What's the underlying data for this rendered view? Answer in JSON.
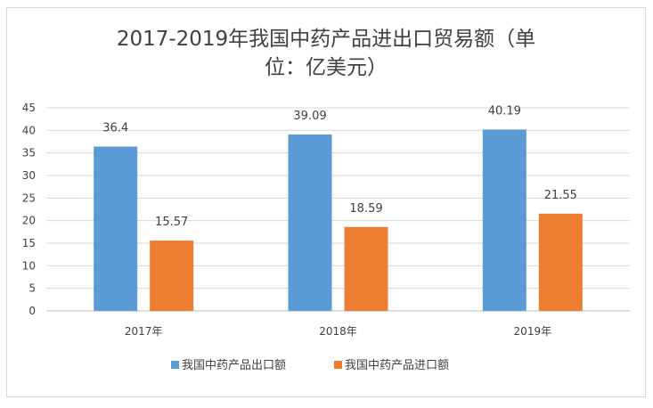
{
  "chart_data": {
    "type": "bar",
    "title_line1": "2017-2019年我国中药产品进出口贸易额（单",
    "title_line2": "位：亿美元）",
    "categories": [
      "2017年",
      "2018年",
      "2019年"
    ],
    "series": [
      {
        "name": "我国中药产品出口额",
        "values": [
          36.4,
          39.09,
          40.19
        ],
        "labels": [
          "36.4",
          "39.09",
          "40.19"
        ],
        "color": "#5b9bd5"
      },
      {
        "name": "我国中药产品进口额",
        "values": [
          15.57,
          18.59,
          21.55
        ],
        "labels": [
          "15.57",
          "18.59",
          "21.55"
        ],
        "color": "#ed7d31"
      }
    ],
    "ylim": [
      0,
      45
    ],
    "yticks": [
      "0",
      "5",
      "10",
      "15",
      "20",
      "25",
      "30",
      "35",
      "40",
      "45"
    ],
    "ytick_values": [
      0,
      5,
      10,
      15,
      20,
      25,
      30,
      35,
      40,
      45
    ],
    "grid": true,
    "legend_position": "bottom"
  }
}
